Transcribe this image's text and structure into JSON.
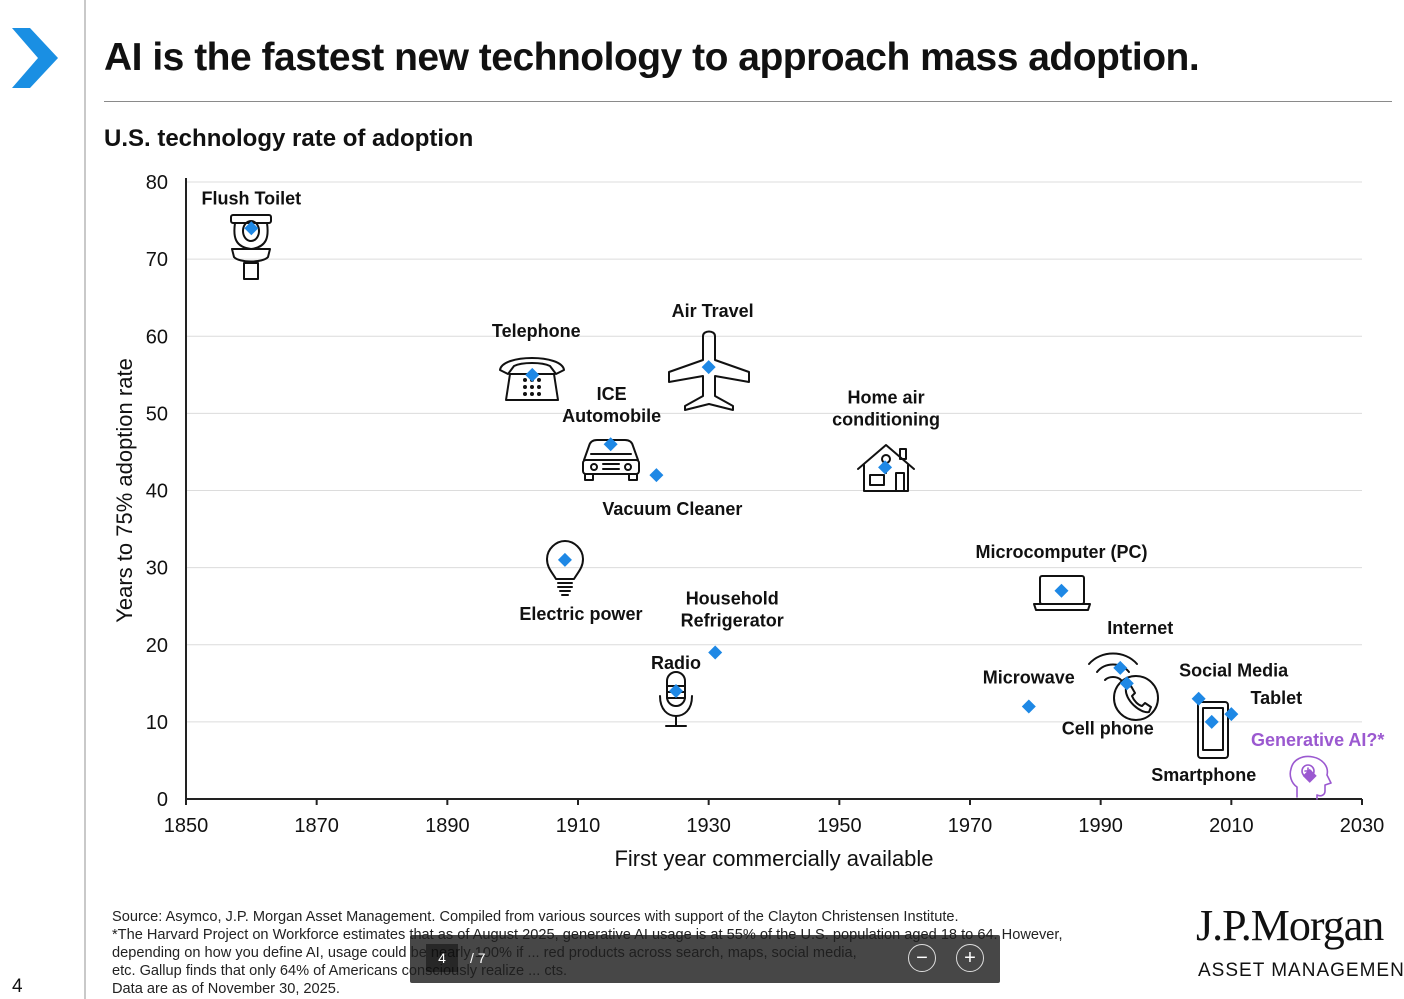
{
  "page": {
    "title": "AI is the fastest new technology to approach mass adoption.",
    "number": "4"
  },
  "chart_data": {
    "type": "scatter",
    "title": "U.S. technology rate of adoption",
    "xlabel": "First year commercially available",
    "ylabel": "Years to 75% adoption rate",
    "xlim": [
      1850,
      2030
    ],
    "ylim": [
      0,
      80
    ],
    "xticks": [
      1850,
      1870,
      1890,
      1910,
      1930,
      1950,
      1970,
      1990,
      2010,
      2030
    ],
    "yticks": [
      0,
      10,
      20,
      30,
      40,
      50,
      60,
      70,
      80
    ],
    "grid": true,
    "point_color": "#1e88e5",
    "highlight_color": "#9b59d0",
    "points": [
      {
        "name": "Flush Toilet",
        "label": "Flush Toilet",
        "x": 1860,
        "y": 74,
        "icon": "toilet-icon"
      },
      {
        "name": "Telephone",
        "label": "Telephone",
        "x": 1903,
        "y": 55,
        "icon": "telephone-icon"
      },
      {
        "name": "Air Travel",
        "label": "Air Travel",
        "x": 1930,
        "y": 56,
        "icon": "airplane-icon"
      },
      {
        "name": "ICE Automobile",
        "label": "ICE\nAutomobile",
        "x": 1915,
        "y": 46,
        "icon": "car-icon"
      },
      {
        "name": "Vacuum Cleaner",
        "label": "Vacuum Cleaner",
        "x": 1922,
        "y": 42,
        "icon": ""
      },
      {
        "name": "Home air conditioning",
        "label": "Home air\nconditioning",
        "x": 1957,
        "y": 43,
        "icon": "house-icon"
      },
      {
        "name": "Electric power",
        "label": "Electric power",
        "x": 1908,
        "y": 31,
        "icon": "lightbulb-icon"
      },
      {
        "name": "Microcomputer (PC)",
        "label": "Microcomputer (PC)",
        "x": 1984,
        "y": 27,
        "icon": "laptop-icon"
      },
      {
        "name": "Household Refrigerator",
        "label": "Household\nRefrigerator",
        "x": 1931,
        "y": 19,
        "icon": ""
      },
      {
        "name": "Radio",
        "label": "Radio",
        "x": 1925,
        "y": 14,
        "icon": "microphone-icon"
      },
      {
        "name": "Internet",
        "label": "Internet",
        "x": 1993,
        "y": 17,
        "icon": "wifi-icon"
      },
      {
        "name": "Cell phone",
        "label": "Cell phone",
        "x": 1994,
        "y": 15,
        "icon": "phone-handset-icon"
      },
      {
        "name": "Microwave",
        "label": "Microwave",
        "x": 1979,
        "y": 12,
        "icon": ""
      },
      {
        "name": "Social Media",
        "label": "Social Media",
        "x": 2005,
        "y": 13,
        "icon": ""
      },
      {
        "name": "Tablet",
        "label": "Tablet",
        "x": 2010,
        "y": 11,
        "icon": ""
      },
      {
        "name": "Smartphone",
        "label": "Smartphone",
        "x": 2007,
        "y": 10,
        "icon": "smartphone-icon"
      },
      {
        "name": "Generative AI?*",
        "label": "Generative AI?*",
        "x": 2022,
        "y": 3,
        "icon": "ai-head-icon",
        "highlight": true
      }
    ]
  },
  "footnote": {
    "lines": [
      "Source: Asymco, J.P. Morgan Asset Management. Compiled from various sources with support of the Clayton Christensen Institute.",
      "*The Harvard Project on Workforce estimates that as of August 2025, generative AI usage is at 55% of the U.S. population aged 18 to 64. However,",
      "depending on how you define AI, usage could be nearly 100% if ... red products across search, maps, social media,",
      "etc. Gallup finds that only 64% of Americans consciously realize ... cts.",
      "Data are as of November 30, 2025."
    ]
  },
  "brand": {
    "name": "J.P.Morgan",
    "sub": "ASSET MANAGEMENT"
  },
  "viewer": {
    "current_page": "4",
    "total_pages": "/ 7",
    "zoom_out": "−",
    "zoom_in": "+"
  }
}
